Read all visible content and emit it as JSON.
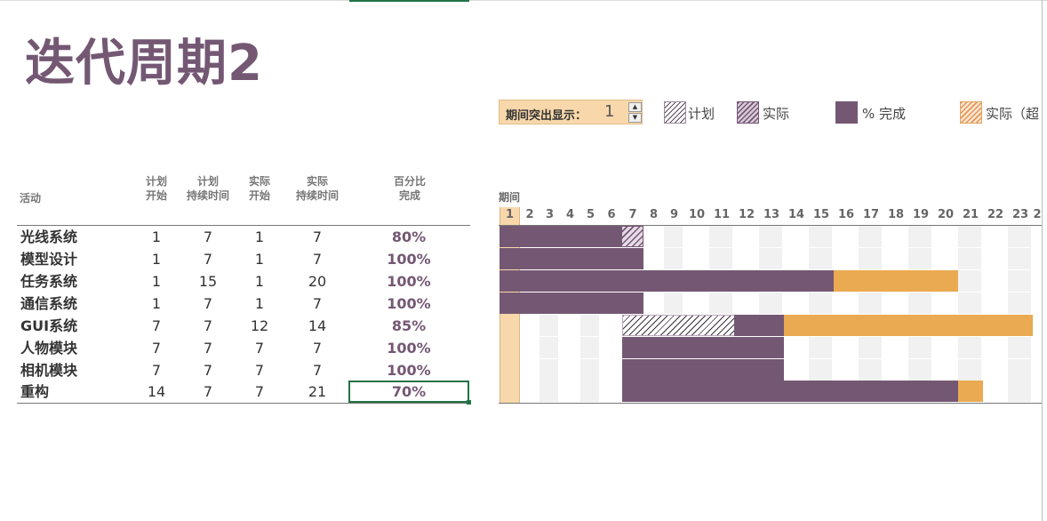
{
  "title": "迭代周期2",
  "highlight": {
    "label": "期间突出显示：",
    "value": "1",
    "up_symbol": "▲",
    "down_symbol": "▼"
  },
  "legend": [
    {
      "label": "计划",
      "style": "plan"
    },
    {
      "label": "实际",
      "style": "actual"
    },
    {
      "label": "% 完成",
      "style": "pct"
    },
    {
      "label": "实际（超",
      "style": "over"
    }
  ],
  "headers": {
    "activity": "活动",
    "plan_start": [
      "计划",
      "开始"
    ],
    "plan_duration": [
      "计划",
      "持续时间"
    ],
    "actual_start": [
      "实际",
      "开始"
    ],
    "actual_duration": [
      "实际",
      "持续时间"
    ],
    "percent": [
      "百分比",
      "完成"
    ],
    "period": "期间"
  },
  "periods": [
    "1",
    "2",
    "3",
    "4",
    "5",
    "6",
    "7",
    "8",
    "9",
    "10",
    "11",
    "12",
    "13",
    "14",
    "15",
    "16",
    "17",
    "18",
    "19",
    "20",
    "21",
    "22",
    "23",
    "2"
  ],
  "activities": [
    {
      "name": "光线系统",
      "plan_start": "1",
      "plan_duration": "7",
      "actual_start": "1",
      "actual_duration": "7",
      "percent": "80%"
    },
    {
      "name": "模型设计",
      "plan_start": "1",
      "plan_duration": "7",
      "actual_start": "1",
      "actual_duration": "7",
      "percent": "100%"
    },
    {
      "name": "任务系统",
      "plan_start": "1",
      "plan_duration": "15",
      "actual_start": "1",
      "actual_duration": "20",
      "percent": "100%"
    },
    {
      "name": "通信系统",
      "plan_start": "1",
      "plan_duration": "7",
      "actual_start": "1",
      "actual_duration": "7",
      "percent": "100%"
    },
    {
      "name": "GUI系统",
      "plan_start": "7",
      "plan_duration": "7",
      "actual_start": "12",
      "actual_duration": "14",
      "percent": "85%"
    },
    {
      "name": "人物模块",
      "plan_start": "7",
      "plan_duration": "7",
      "actual_start": "7",
      "actual_duration": "7",
      "percent": "100%"
    },
    {
      "name": "相机模块",
      "plan_start": "7",
      "plan_duration": "7",
      "actual_start": "7",
      "actual_duration": "7",
      "percent": "100%"
    },
    {
      "name": "重构",
      "plan_start": "14",
      "plan_duration": "7",
      "actual_start": "7",
      "actual_duration": "21",
      "percent": "70%"
    }
  ],
  "colors": {
    "accent": "#745873",
    "over": "#e9aa51",
    "highlight": "#f8d8ab",
    "selection": "#217346"
  }
}
